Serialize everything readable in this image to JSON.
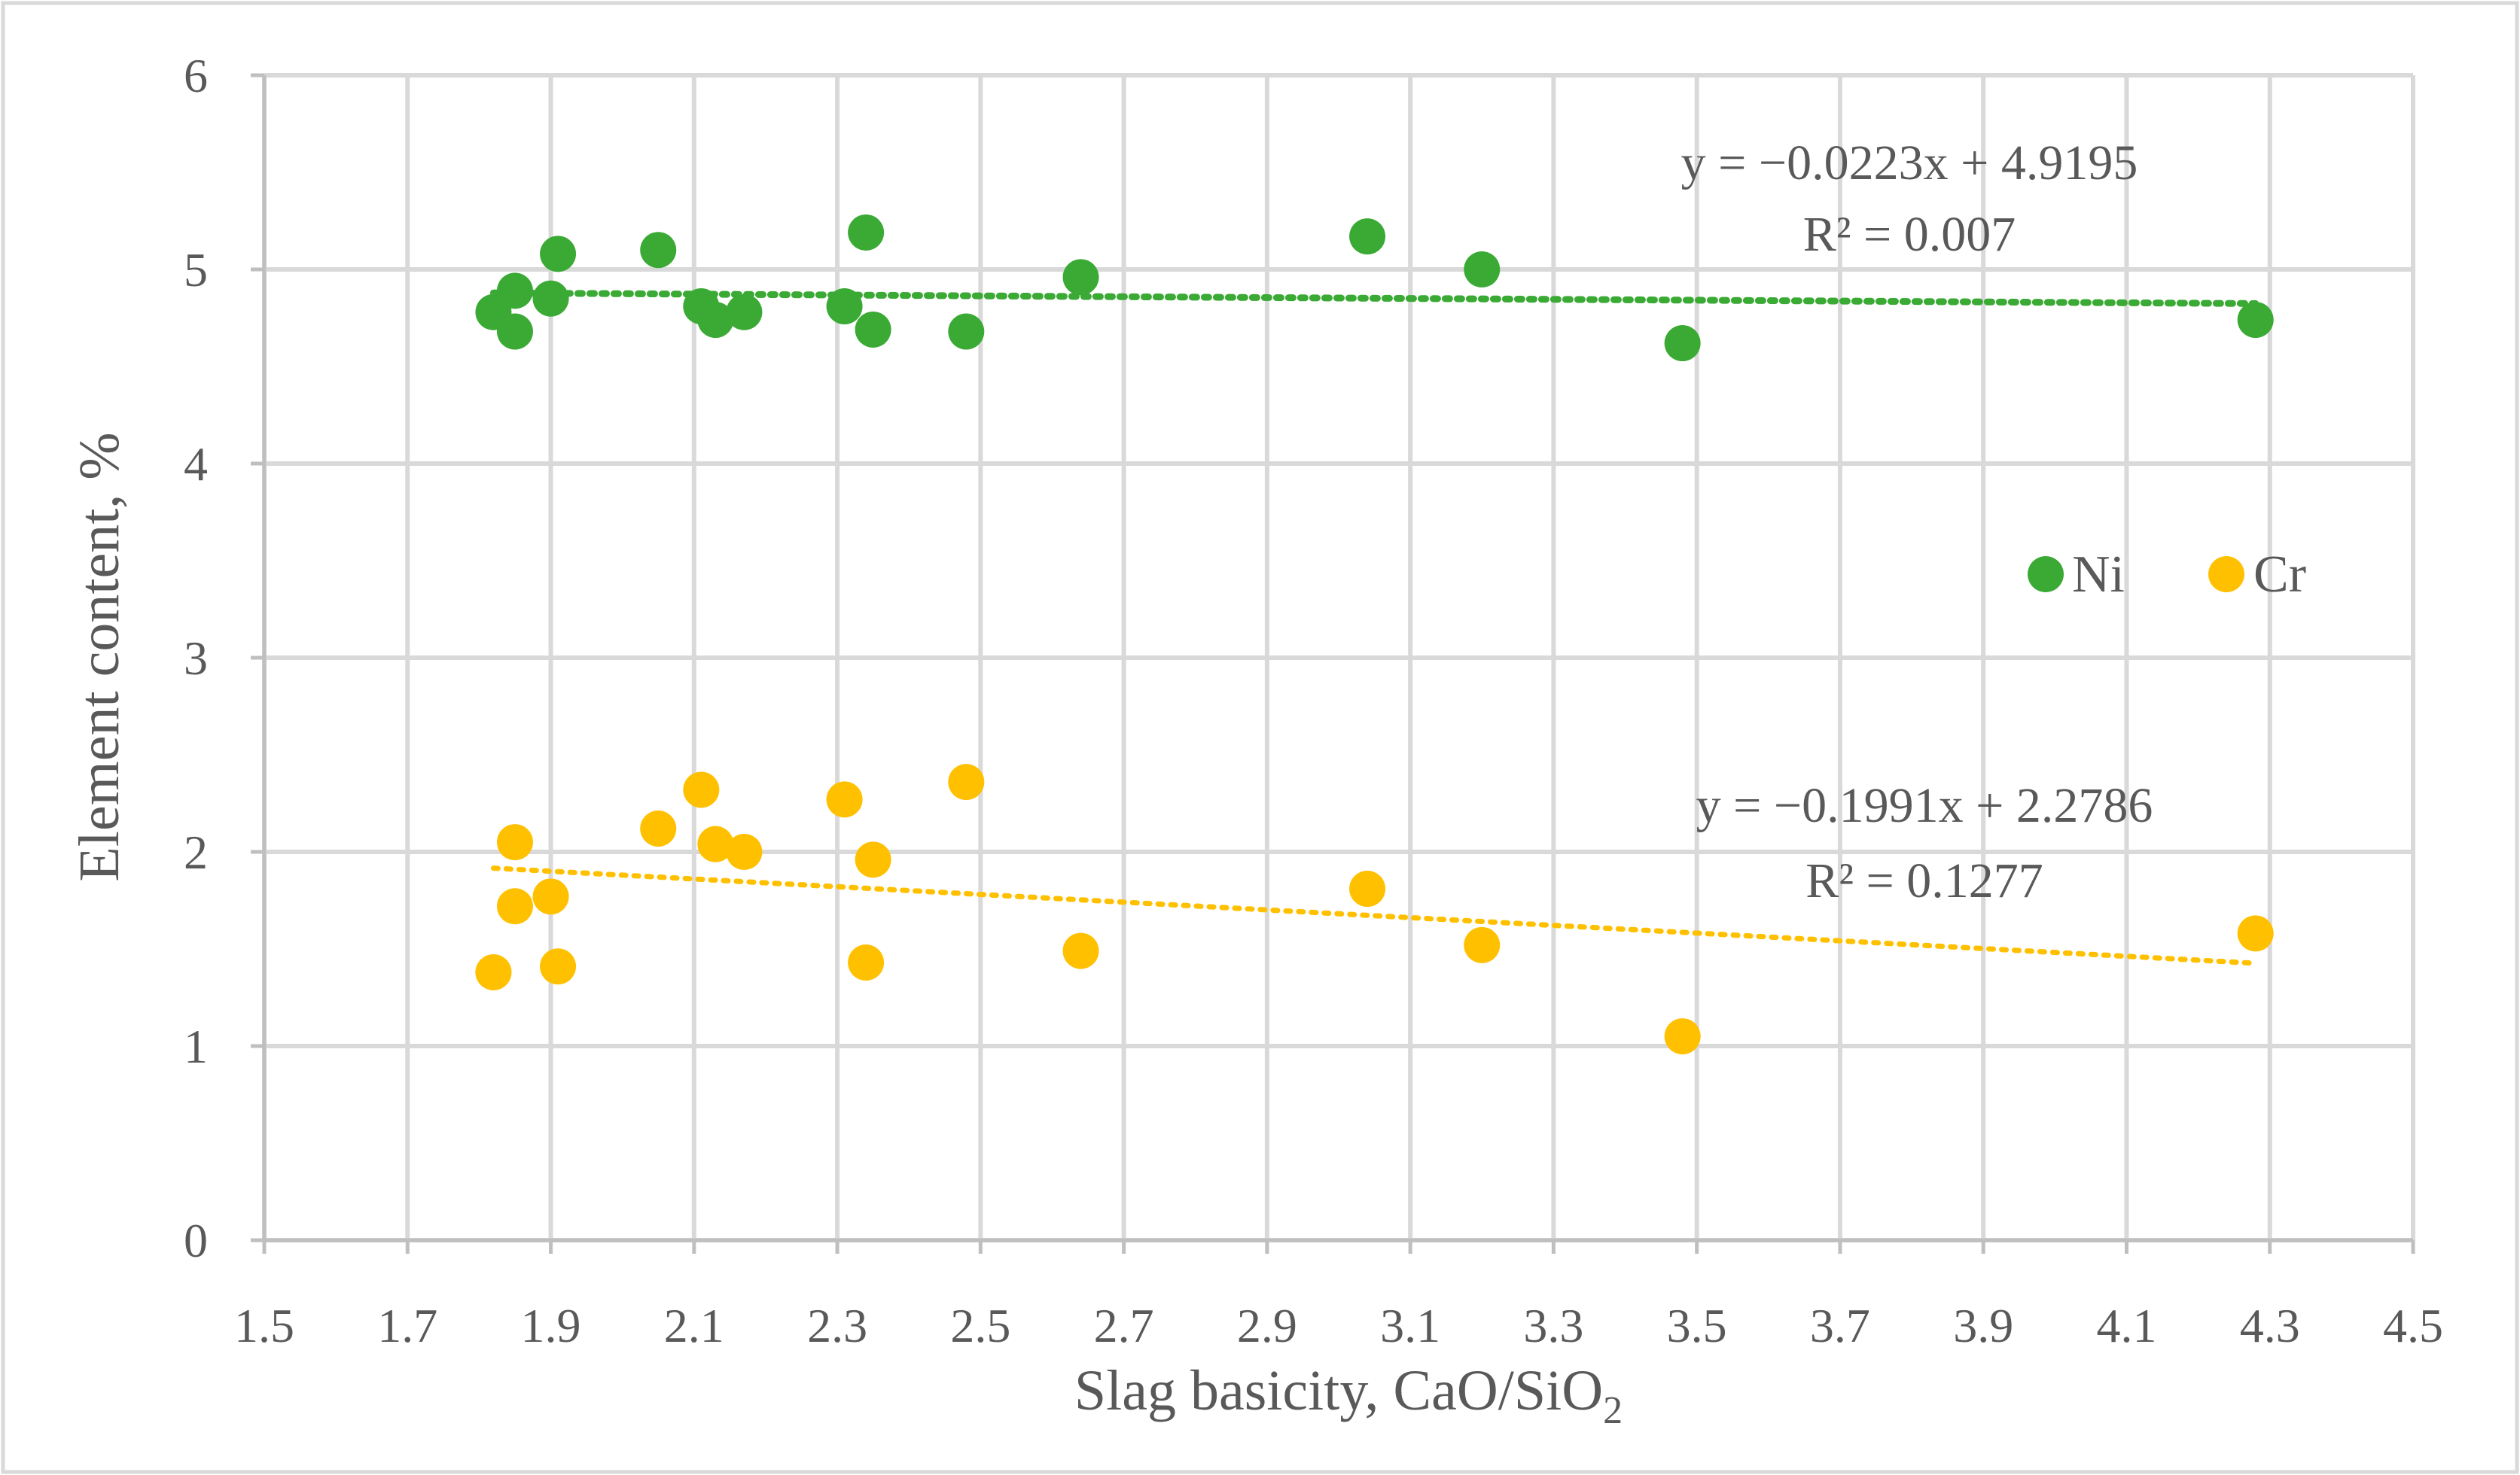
{
  "chart_data": {
    "type": "scatter",
    "title": "",
    "xlabel": "Slag basicity, CaO/SiO",
    "xlabel_subscript": "2",
    "ylabel": "Element content, %",
    "xlim": [
      1.5,
      4.5
    ],
    "ylim": [
      0,
      6
    ],
    "x_ticks": [
      1.5,
      1.7,
      1.9,
      2.1,
      2.3,
      2.5,
      2.7,
      2.9,
      3.1,
      3.3,
      3.5,
      3.7,
      3.9,
      4.1,
      4.3,
      4.5
    ],
    "x_tick_labels": [
      "1.5",
      "1.7",
      "1.9",
      "2.1",
      "2.3",
      "2.5",
      "2.7",
      "2.9",
      "3.1",
      "3.3",
      "3.5",
      "3.7",
      "3.9",
      "4.1",
      "4.3",
      "4.5"
    ],
    "y_ticks": [
      0,
      1,
      2,
      3,
      4,
      5,
      6
    ],
    "y_tick_labels": [
      "0",
      "1",
      "2",
      "3",
      "4",
      "5",
      "6"
    ],
    "grid": true,
    "legend_position": "middle-right",
    "series": [
      {
        "name": "Ni",
        "color": "#3aaa35",
        "x": [
          1.82,
          1.85,
          1.85,
          1.9,
          1.91,
          2.05,
          2.11,
          2.13,
          2.17,
          2.31,
          2.34,
          2.35,
          2.48,
          2.64,
          3.04,
          3.2,
          3.48,
          4.28
        ],
        "y": [
          4.78,
          4.89,
          4.68,
          4.85,
          5.08,
          5.1,
          4.81,
          4.74,
          4.78,
          4.81,
          5.19,
          4.69,
          4.68,
          4.96,
          5.17,
          5.0,
          4.62,
          4.74
        ],
        "trendline": {
          "slope": -0.0223,
          "intercept": 4.9195,
          "x_range": [
            1.82,
            4.28
          ],
          "equation": "y = −0.0223x + 4.9195",
          "r_squared": "R² = 0.007"
        }
      },
      {
        "name": "Cr",
        "color": "#ffc000",
        "x": [
          1.82,
          1.85,
          1.85,
          1.9,
          1.91,
          2.05,
          2.11,
          2.13,
          2.17,
          2.31,
          2.34,
          2.35,
          2.48,
          2.64,
          3.04,
          3.2,
          3.48,
          4.28
        ],
        "y": [
          1.38,
          2.05,
          1.72,
          1.77,
          1.41,
          2.12,
          2.32,
          2.04,
          2.0,
          2.27,
          1.43,
          1.96,
          2.36,
          1.49,
          1.81,
          1.52,
          1.05,
          1.58
        ],
        "trendline": {
          "slope": -0.1991,
          "intercept": 2.2786,
          "x_range": [
            1.82,
            4.28
          ],
          "equation": "y = −0.1991x + 2.2786",
          "r_squared": "R² = 0.1277"
        }
      }
    ]
  }
}
